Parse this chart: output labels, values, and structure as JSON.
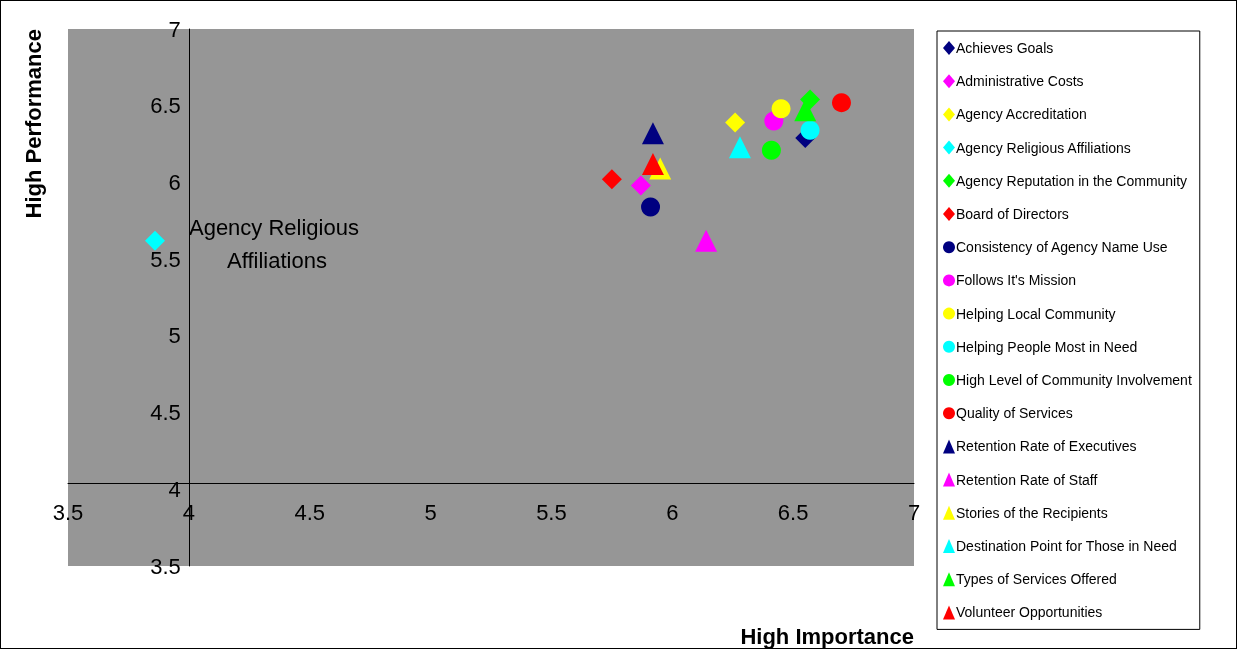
{
  "chart_data": {
    "type": "scatter",
    "xlabel": "High Importance",
    "ylabel": "High Performance",
    "xlim": [
      3.5,
      7
    ],
    "xticks": [
      3.5,
      4,
      4.5,
      5,
      5.5,
      6,
      6.5,
      7
    ],
    "ylim": [
      3.5,
      7
    ],
    "yticks": [
      3.5,
      4,
      4.5,
      5,
      5.5,
      6,
      6.5,
      7
    ],
    "grid": false,
    "legend": "right",
    "annotations": [
      {
        "text": "Agency Religious Affiliations",
        "x": 3.86,
        "y": 5.62
      }
    ],
    "series": [
      {
        "name": "Achieves Goals",
        "color": "#000080",
        "marker": "diamond",
        "x": [
          6.55
        ],
        "values": [
          6.29
        ]
      },
      {
        "name": "Administrative Costs",
        "color": "#ff00ff",
        "marker": "diamond",
        "x": [
          5.87
        ],
        "values": [
          5.98
        ]
      },
      {
        "name": "Agency Accreditation",
        "color": "#ffff00",
        "marker": "diamond",
        "x": [
          6.26
        ],
        "values": [
          6.39
        ]
      },
      {
        "name": "Agency Religious Affiliations",
        "color": "#00ffff",
        "marker": "diamond",
        "x": [
          3.86
        ],
        "values": [
          5.62
        ]
      },
      {
        "name": "Agency Reputation in the Community",
        "color": "#00ff00",
        "marker": "diamond",
        "x": [
          6.57
        ],
        "values": [
          6.54
        ]
      },
      {
        "name": "Board of Directors",
        "color": "#ff0000",
        "marker": "diamond",
        "x": [
          5.75
        ],
        "values": [
          6.02
        ]
      },
      {
        "name": "Consistency of Agency Name Use",
        "color": "#000080",
        "marker": "circle",
        "x": [
          5.91
        ],
        "values": [
          5.84
        ]
      },
      {
        "name": "Follows It's Mission",
        "color": "#ff00ff",
        "marker": "circle",
        "x": [
          6.42
        ],
        "values": [
          6.4
        ]
      },
      {
        "name": "Helping Local Community",
        "color": "#ffff00",
        "marker": "circle",
        "x": [
          6.45
        ],
        "values": [
          6.48
        ]
      },
      {
        "name": "Helping People Most in Need",
        "color": "#00ffff",
        "marker": "circle",
        "x": [
          6.57
        ],
        "values": [
          6.34
        ]
      },
      {
        "name": "High Level of Community Involvement",
        "color": "#00ff00",
        "marker": "circle",
        "x": [
          6.41
        ],
        "values": [
          6.21
        ]
      },
      {
        "name": "Quality of Services",
        "color": "#ff0000",
        "marker": "circle",
        "x": [
          6.7
        ],
        "values": [
          6.52
        ]
      },
      {
        "name": "Retention Rate of Executives",
        "color": "#000080",
        "marker": "triangle",
        "x": [
          5.92
        ],
        "values": [
          6.32
        ]
      },
      {
        "name": "Retention Rate of Staff",
        "color": "#ff00ff",
        "marker": "triangle",
        "x": [
          6.14
        ],
        "values": [
          5.62
        ]
      },
      {
        "name": "Stories of the Recipients",
        "color": "#ffff00",
        "marker": "triangle",
        "x": [
          5.95
        ],
        "values": [
          6.09
        ]
      },
      {
        "name": "Destination Point for Those in Need",
        "color": "#00ffff",
        "marker": "triangle",
        "x": [
          6.28
        ],
        "values": [
          6.23
        ]
      },
      {
        "name": "Types of Services Offered",
        "color": "#00ff00",
        "marker": "triangle",
        "x": [
          6.55
        ],
        "values": [
          6.47
        ]
      },
      {
        "name": "Volunteer Opportunities",
        "color": "#ff0000",
        "marker": "triangle",
        "x": [
          5.92
        ],
        "values": [
          6.12
        ]
      }
    ]
  }
}
